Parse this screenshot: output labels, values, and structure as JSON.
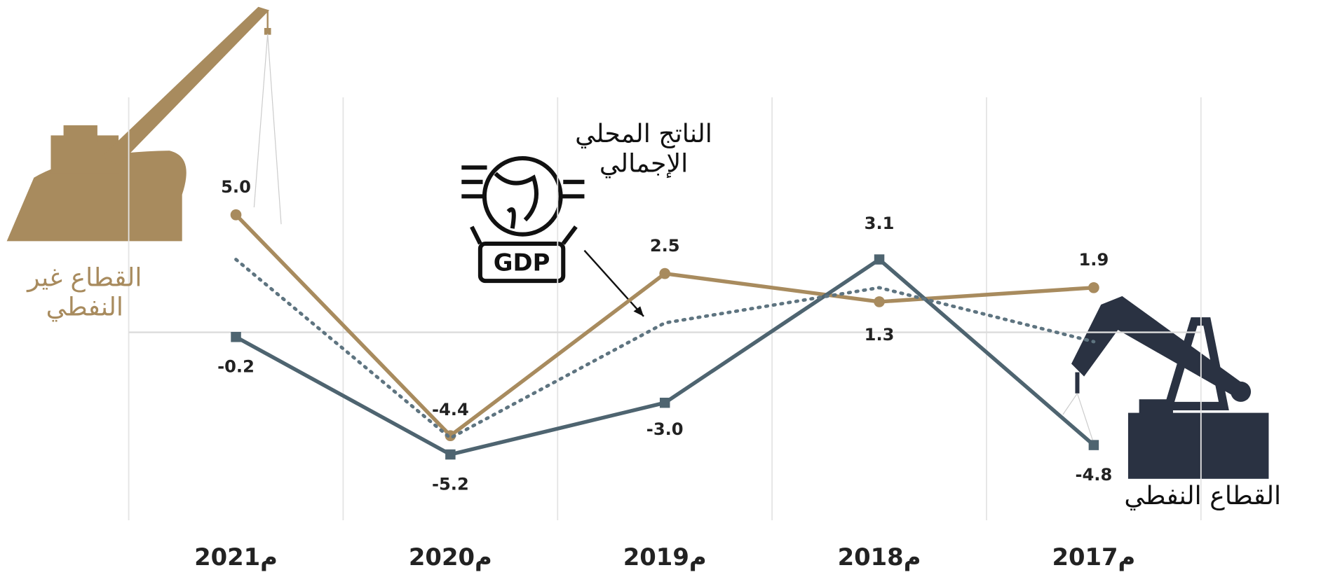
{
  "chart_data": {
    "type": "line",
    "categories": [
      "2021م",
      "2020م",
      "2019م",
      "2018م",
      "2017م"
    ],
    "series": [
      {
        "name": "القطاع غير النفطي",
        "color": "#a88b5e",
        "style": "solid",
        "marker": "circle",
        "values": [
          5.0,
          -4.4,
          2.5,
          1.3,
          1.9
        ],
        "value_labels": [
          "5.0",
          "-4.4",
          "2.5",
          "1.3",
          "1.9"
        ]
      },
      {
        "name": "القطاع النفطي",
        "color": "#4e6470",
        "style": "solid",
        "marker": "square",
        "values": [
          -0.2,
          -5.2,
          -3.0,
          3.1,
          -4.8
        ],
        "value_labels": [
          "-0.2",
          "-5.2",
          "-3.0",
          "3.1",
          "-4.8"
        ]
      },
      {
        "name": "الناتج المحلي الإجمالي",
        "color": "#5e7480",
        "style": "dotted",
        "values": [
          3.1,
          -4.5,
          0.4,
          1.9,
          -0.4
        ]
      }
    ],
    "annotations": [
      "GDP"
    ],
    "ylim": [
      -8,
      10
    ],
    "grid": true
  }
}
